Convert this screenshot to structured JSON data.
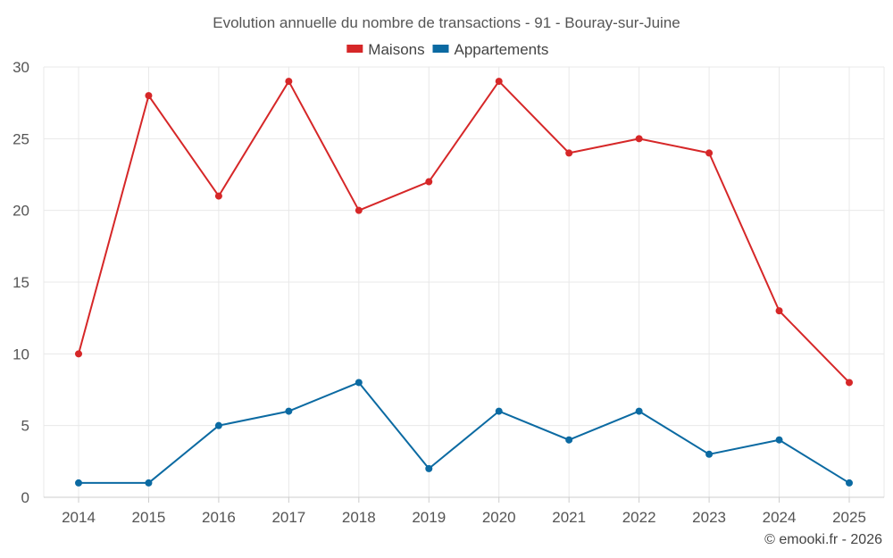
{
  "chart_data": {
    "type": "line",
    "title": "Evolution annuelle du nombre de transactions - 91 - Bouray-sur-Juine",
    "x": [
      "2014",
      "2015",
      "2016",
      "2017",
      "2018",
      "2019",
      "2020",
      "2021",
      "2022",
      "2023",
      "2024",
      "2025"
    ],
    "series": [
      {
        "name": "Maisons",
        "color": "#d62728",
        "values": [
          10,
          28,
          21,
          29,
          20,
          22,
          29,
          24,
          25,
          24,
          13,
          8
        ]
      },
      {
        "name": "Appartements",
        "color": "#0b6aa2",
        "values": [
          1,
          1,
          5,
          6,
          8,
          2,
          6,
          4,
          6,
          3,
          4,
          1
        ]
      }
    ],
    "y_ticks": [
      0,
      5,
      10,
      15,
      20,
      25,
      30
    ],
    "ylim": [
      0,
      30
    ],
    "xlabel": "",
    "ylabel": "",
    "grid": true,
    "legend_position": "top-center"
  },
  "credit": "© emooki.fr - 2026"
}
